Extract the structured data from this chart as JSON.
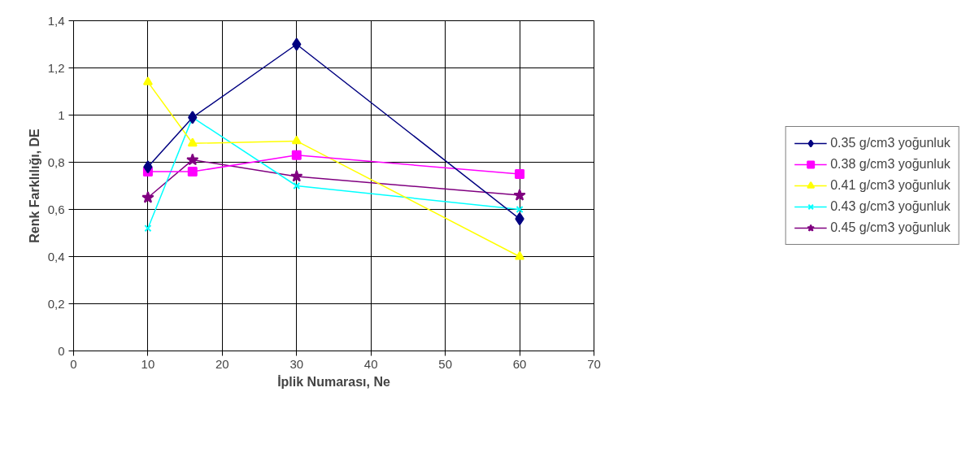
{
  "chart_data": {
    "type": "line",
    "xlabel": "İplik Numarası, Ne",
    "ylabel": "Renk Farklılığı, DE",
    "x": [
      10,
      16,
      30,
      60
    ],
    "series": [
      {
        "name": "0.35 g/cm3 yoğunluk",
        "color": "#000080",
        "marker": "diamond",
        "values": [
          0.78,
          0.99,
          1.3,
          0.56
        ]
      },
      {
        "name": "0.38 g/cm3 yoğunluk",
        "color": "#ff00ff",
        "marker": "square",
        "values": [
          0.76,
          0.76,
          0.83,
          0.75
        ]
      },
      {
        "name": "0.41 g/cm3 yoğunluk",
        "color": "#ffff00",
        "marker": "triangle",
        "values": [
          1.14,
          0.88,
          0.89,
          0.4
        ]
      },
      {
        "name": "0.43 g/cm3 yoğunluk",
        "color": "#00ffff",
        "marker": "cross",
        "values": [
          0.52,
          0.99,
          0.7,
          0.6
        ]
      },
      {
        "name": "0.45 g/cm3 yoğunluk",
        "color": "#800080",
        "marker": "star",
        "values": [
          0.65,
          0.81,
          0.74,
          0.66
        ]
      }
    ],
    "xlim": [
      0,
      70
    ],
    "xticks": [
      0,
      10,
      20,
      30,
      40,
      50,
      60,
      70
    ],
    "ylim": [
      0,
      1.4
    ],
    "yticks": [
      0,
      {
        "value": 0.2,
        "label": "0,2"
      },
      {
        "value": 0.4,
        "label": "0,4"
      },
      {
        "value": 0.6,
        "label": "0,6"
      },
      {
        "value": 0.8,
        "label": "0,8"
      },
      1,
      {
        "value": 1.2,
        "label": "1,2"
      },
      {
        "value": 1.4,
        "label": "1,4"
      }
    ],
    "grid": true,
    "legend": "right"
  }
}
